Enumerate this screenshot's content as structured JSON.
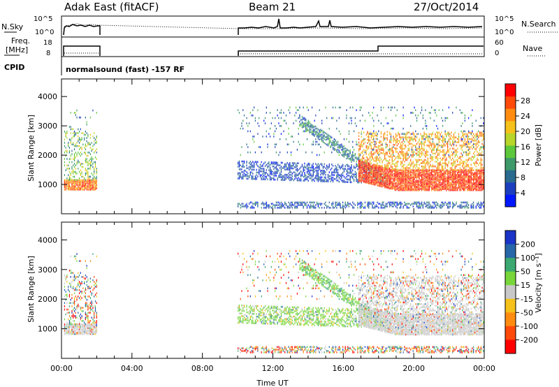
{
  "header": {
    "station": "Adak East (fitACF)",
    "beam": "Beam 21",
    "date": "27/Oct/2014"
  },
  "panels": {
    "nsky_label": "N.Sky",
    "nsearch_label": "N.Search",
    "freq_label_1": "Freq.",
    "freq_label_2": "[MHz]",
    "nave_label": "Nave",
    "cpid_label": "CPID",
    "cpid_text": "normalsound (fast) -157 RF",
    "nsky_ticks": [
      "10^5",
      "10^0"
    ],
    "nsearch_ticks": [
      "10^5",
      "10^0"
    ],
    "freq_ticks": [
      "18",
      "8"
    ],
    "nave_ticks": [
      "60",
      "0"
    ]
  },
  "chart_data": [
    {
      "type": "heatmap",
      "title": "",
      "ylabel": "Slant Range [km]",
      "xlabel": "",
      "ylim": [
        0,
        4600
      ],
      "yticks": [
        "1000",
        "2000",
        "3000",
        "4000"
      ],
      "colorbar": {
        "label": "Power [dB]",
        "ticks": [
          "4",
          "8",
          "12",
          "16",
          "20",
          "24",
          "28"
        ],
        "colors": [
          "#0018ff",
          "#1c3fbf",
          "#2a6b8f",
          "#3e9a6a",
          "#5ec83c",
          "#b8d52a",
          "#f5c11a",
          "#ff8c10",
          "#ff4a0a",
          "#ff0000"
        ]
      }
    },
    {
      "type": "heatmap",
      "title": "",
      "ylabel": "Slant Range [km]",
      "xlabel": "Time UT",
      "ylim": [
        0,
        4600
      ],
      "yticks": [
        "1000",
        "2000",
        "3000",
        "4000"
      ],
      "xticks": [
        "00:00",
        "04:00",
        "08:00",
        "12:00",
        "16:00",
        "20:00",
        "00:00"
      ],
      "colorbar": {
        "label": "Velocity [m s⁻¹]",
        "ticks": [
          "200",
          "100",
          "50",
          "15",
          "-15",
          "-50",
          "-100",
          "-200"
        ],
        "colors": [
          "#1a34c8",
          "#2766a8",
          "#3aa870",
          "#78d63a",
          "#c8c8c8",
          "#f5c11a",
          "#ff8c10",
          "#ff4a0a",
          "#ff0000"
        ]
      }
    }
  ]
}
